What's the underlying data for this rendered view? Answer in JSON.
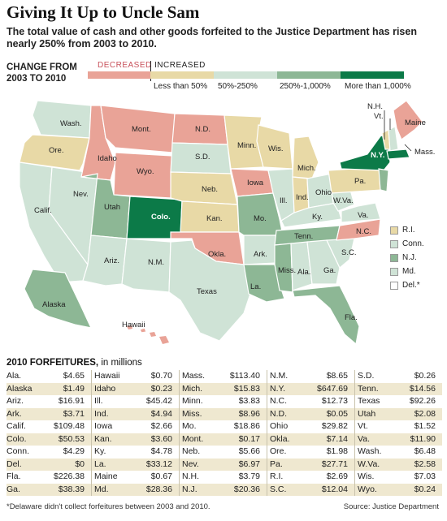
{
  "title": "Giving It Up to Uncle Sam",
  "subtitle": "The total value of cash and other goods forfeited to the Justice Department has risen nearly 250% from 2003 to 2010.",
  "legend": {
    "heading_line1": "CHANGE FROM",
    "heading_line2": "2003 TO 2010",
    "decreased_label": "DECREASED",
    "increased_label": "INCREASED",
    "bins": [
      {
        "key": "decreased",
        "label": "",
        "color": "#e9a397"
      },
      {
        "key": "lt50",
        "label": "Less than 50%",
        "color": "#e8d9a6"
      },
      {
        "key": "50to250",
        "label": "50%-250%",
        "color": "#cfe3d6"
      },
      {
        "key": "250to1000",
        "label": "250%-1,000%",
        "color": "#8db795"
      },
      {
        "key": "gt1000",
        "label": "More than 1,000%",
        "color": "#0c7a48"
      }
    ]
  },
  "chart_data": {
    "type": "choropleth",
    "title": "Giving It Up to Uncle Sam",
    "measure": "Change in forfeitures from 2003 to 2010",
    "categories": [
      "Decreased",
      "Less than 50%",
      "50%-250%",
      "250%-1,000%",
      "More than 1,000%"
    ],
    "states": [
      {
        "label": "Wash.",
        "change_bin": "50to250"
      },
      {
        "label": "Ore.",
        "change_bin": "lt50"
      },
      {
        "label": "Calif.",
        "change_bin": "50to250"
      },
      {
        "label": "Nev.",
        "change_bin": "50to250"
      },
      {
        "label": "Idaho",
        "change_bin": "decreased"
      },
      {
        "label": "Mont.",
        "change_bin": "decreased"
      },
      {
        "label": "Wyo.",
        "change_bin": "decreased"
      },
      {
        "label": "Utah",
        "change_bin": "250to1000"
      },
      {
        "label": "Ariz.",
        "change_bin": "50to250"
      },
      {
        "label": "Colo.",
        "change_bin": "gt1000"
      },
      {
        "label": "N.M.",
        "change_bin": "50to250"
      },
      {
        "label": "N.D.",
        "change_bin": "decreased"
      },
      {
        "label": "S.D.",
        "change_bin": "50to250"
      },
      {
        "label": "Neb.",
        "change_bin": "lt50"
      },
      {
        "label": "Kan.",
        "change_bin": "lt50"
      },
      {
        "label": "Okla.",
        "change_bin": "decreased"
      },
      {
        "label": "Texas",
        "change_bin": "50to250"
      },
      {
        "label": "Minn.",
        "change_bin": "lt50"
      },
      {
        "label": "Iowa",
        "change_bin": "decreased"
      },
      {
        "label": "Mo.",
        "change_bin": "250to1000"
      },
      {
        "label": "Ark.",
        "change_bin": "50to250"
      },
      {
        "label": "La.",
        "change_bin": "250to1000"
      },
      {
        "label": "Wis.",
        "change_bin": "lt50"
      },
      {
        "label": "Ill.",
        "change_bin": "50to250"
      },
      {
        "label": "Mich.",
        "change_bin": "lt50"
      },
      {
        "label": "Ind.",
        "change_bin": "lt50"
      },
      {
        "label": "Ohio",
        "change_bin": "50to250"
      },
      {
        "label": "Ky.",
        "change_bin": "50to250"
      },
      {
        "label": "Tenn.",
        "change_bin": "250to1000"
      },
      {
        "label": "Miss.",
        "change_bin": "250to1000"
      },
      {
        "label": "Ala.",
        "change_bin": "50to250"
      },
      {
        "label": "Ga.",
        "change_bin": "50to250"
      },
      {
        "label": "Fla.",
        "change_bin": "250to1000"
      },
      {
        "label": "S.C.",
        "change_bin": "50to250"
      },
      {
        "label": "N.C.",
        "change_bin": "decreased"
      },
      {
        "label": "Va.",
        "change_bin": "50to250"
      },
      {
        "label": "W.Va.",
        "change_bin": "50to250"
      },
      {
        "label": "Pa.",
        "change_bin": "lt50"
      },
      {
        "label": "N.Y.",
        "change_bin": "gt1000"
      },
      {
        "label": "Vt.",
        "change_bin": "lt50"
      },
      {
        "label": "N.H.",
        "change_bin": "50to250"
      },
      {
        "label": "Maine",
        "change_bin": "decreased"
      },
      {
        "label": "Mass.",
        "change_bin": "gt1000"
      },
      {
        "label": "Alaska",
        "change_bin": "250to1000"
      },
      {
        "label": "Hawaii",
        "change_bin": "decreased"
      },
      {
        "label": "R.I.",
        "change_bin": "lt50"
      },
      {
        "label": "Conn.",
        "change_bin": "50to250"
      },
      {
        "label": "N.J.",
        "change_bin": "250to1000"
      },
      {
        "label": "Md.",
        "change_bin": "50to250"
      },
      {
        "label": "Del.*",
        "change_bin": "none"
      }
    ]
  },
  "small_states": [
    {
      "label": "R.I.",
      "bin": "lt50"
    },
    {
      "label": "Conn.",
      "bin": "50to250"
    },
    {
      "label": "N.J.",
      "bin": "250to1000"
    },
    {
      "label": "Md.",
      "bin": "50to250"
    },
    {
      "label": "Del.*",
      "bin": "none"
    }
  ],
  "table": {
    "heading": "2010 FORFEITURES,",
    "heading_units": " in millions",
    "columns": [
      [
        [
          "Ala.",
          "$4.65"
        ],
        [
          "Alaska",
          "$1.49"
        ],
        [
          "Ariz.",
          "$16.91"
        ],
        [
          "Ark.",
          "$3.71"
        ],
        [
          "Calif.",
          "$109.48"
        ],
        [
          "Colo.",
          "$50.53"
        ],
        [
          "Conn.",
          "$4.29"
        ],
        [
          "Del.",
          "$0"
        ],
        [
          "Fla.",
          "$226.38"
        ],
        [
          "Ga.",
          "$38.39"
        ]
      ],
      [
        [
          "Hawaii",
          "$0.70"
        ],
        [
          "Idaho",
          "$0.23"
        ],
        [
          "Ill.",
          "$45.42"
        ],
        [
          "Ind.",
          "$4.94"
        ],
        [
          "Iowa",
          "$2.66"
        ],
        [
          "Kan.",
          "$3.60"
        ],
        [
          "Ky.",
          "$4.78"
        ],
        [
          "La.",
          "$33.12"
        ],
        [
          "Maine",
          "$0.67"
        ],
        [
          "Md.",
          "$28.36"
        ]
      ],
      [
        [
          "Mass.",
          "$113.40"
        ],
        [
          "Mich.",
          "$15.83"
        ],
        [
          "Minn.",
          "$3.83"
        ],
        [
          "Miss.",
          "$8.96"
        ],
        [
          "Mo.",
          "$18.86"
        ],
        [
          "Mont.",
          "$0.17"
        ],
        [
          "Neb.",
          "$5.66"
        ],
        [
          "Nev.",
          "$6.97"
        ],
        [
          "N.H.",
          "$3.79"
        ],
        [
          "N.J.",
          "$20.36"
        ]
      ],
      [
        [
          "N.M.",
          "$8.65"
        ],
        [
          "N.Y.",
          "$647.69"
        ],
        [
          "N.C.",
          "$12.73"
        ],
        [
          "N.D.",
          "$0.05"
        ],
        [
          "Ohio",
          "$29.82"
        ],
        [
          "Okla.",
          "$7.14"
        ],
        [
          "Ore.",
          "$1.98"
        ],
        [
          "Pa.",
          "$27.71"
        ],
        [
          "R.I.",
          "$2.69"
        ],
        [
          "S.C.",
          "$12.04"
        ]
      ],
      [
        [
          "S.D.",
          "$0.26"
        ],
        [
          "Tenn.",
          "$14.56"
        ],
        [
          "Texas",
          "$92.26"
        ],
        [
          "Utah",
          "$2.08"
        ],
        [
          "Vt.",
          "$1.52"
        ],
        [
          "Va.",
          "$11.90"
        ],
        [
          "Wash.",
          "$6.48"
        ],
        [
          "W.Va.",
          "$2.58"
        ],
        [
          "Wis.",
          "$7.03"
        ],
        [
          "Wyo.",
          "$0.24"
        ]
      ]
    ]
  },
  "footnote": "*Delaware didn't collect forfeitures between 2003 and 2010.",
  "source": "Source: Justice Department"
}
